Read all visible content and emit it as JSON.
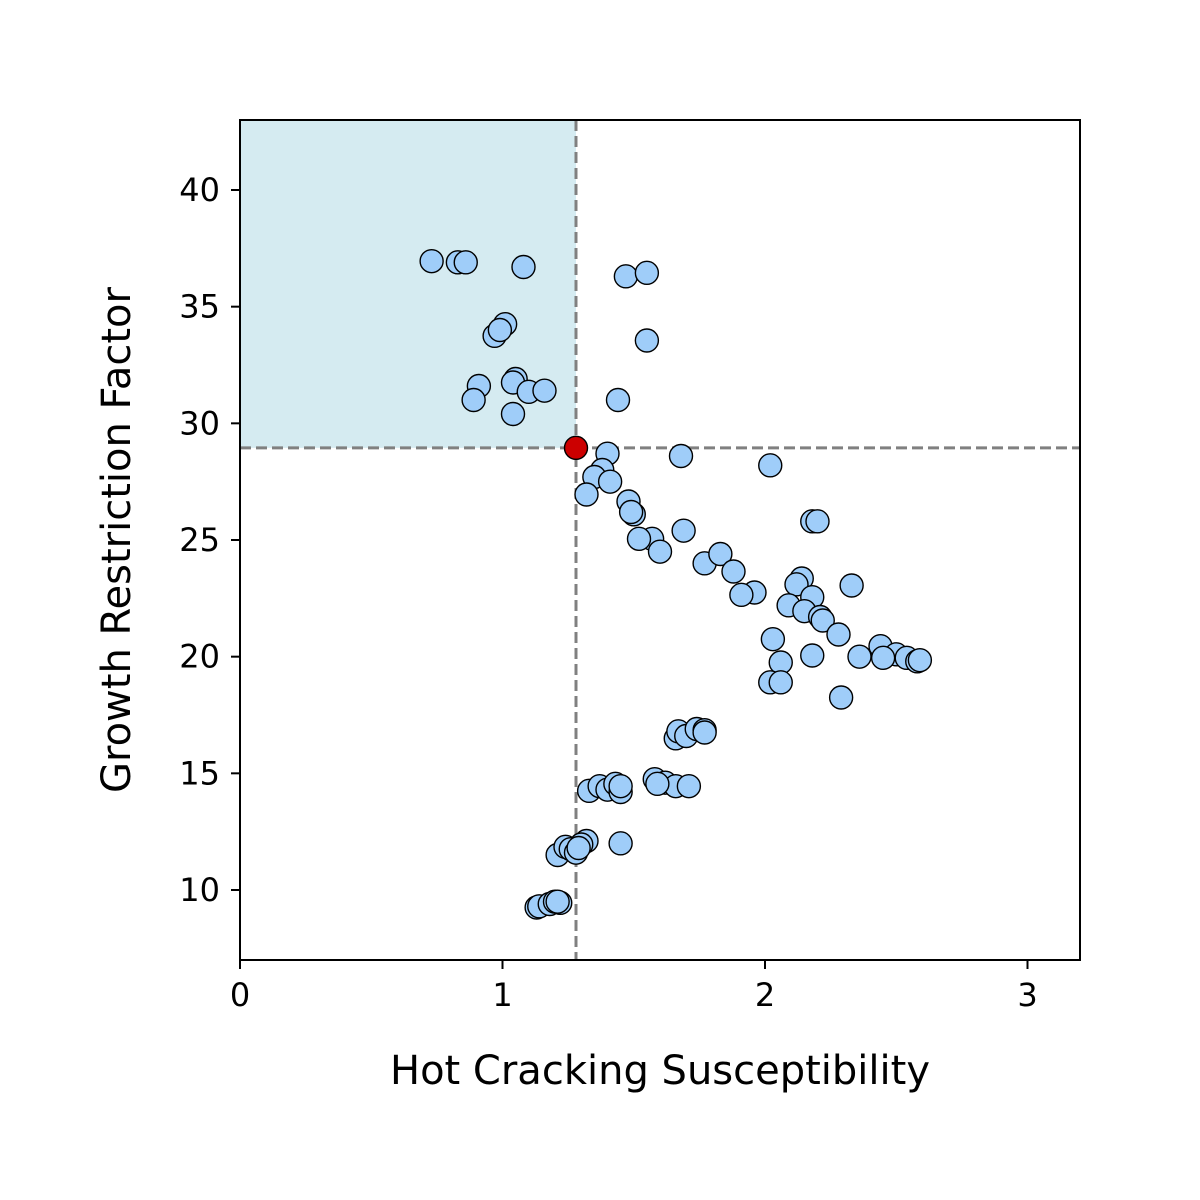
{
  "chart_data": {
    "type": "scatter",
    "title": "",
    "xlabel": "Hot Cracking Susceptibility",
    "ylabel": "Growth Restriction Factor",
    "xlim": [
      0,
      3.2
    ],
    "ylim": [
      7,
      43
    ],
    "xticks": [
      0,
      1,
      2,
      3
    ],
    "yticks": [
      10,
      15,
      20,
      25,
      30,
      35,
      40
    ],
    "grid": false,
    "legend": "none",
    "highlight_region": {
      "x": [
        0,
        1.28
      ],
      "y": [
        28.95,
        43
      ],
      "color": "#d5ebf1"
    },
    "reference_lines": {
      "x": 1.28,
      "y": 28.95,
      "color": "#808080",
      "style": "dashed"
    },
    "point_color": "#9fcdf9",
    "point_edge_color": "#000000",
    "selected_color": "#cc0000",
    "selected_point": {
      "x": 1.28,
      "y": 28.95
    },
    "series": [
      {
        "points": [
          [
            0.73,
            36.95
          ],
          [
            0.83,
            36.9
          ],
          [
            0.86,
            36.9
          ],
          [
            1.08,
            36.7
          ],
          [
            1.47,
            36.3
          ],
          [
            1.55,
            36.45
          ],
          [
            1.01,
            34.25
          ],
          [
            0.97,
            33.75
          ],
          [
            0.99,
            34.0
          ],
          [
            1.55,
            33.55
          ],
          [
            0.91,
            31.6
          ],
          [
            0.89,
            31.0
          ],
          [
            1.05,
            31.9
          ],
          [
            1.04,
            31.75
          ],
          [
            1.1,
            31.35
          ],
          [
            1.16,
            31.4
          ],
          [
            1.04,
            30.4
          ],
          [
            1.44,
            31.0
          ],
          [
            1.68,
            28.6
          ],
          [
            2.02,
            28.2
          ],
          [
            1.4,
            28.7
          ],
          [
            1.38,
            28.0
          ],
          [
            1.35,
            27.7
          ],
          [
            1.41,
            27.5
          ],
          [
            1.32,
            26.95
          ],
          [
            1.48,
            26.65
          ],
          [
            1.5,
            26.1
          ],
          [
            1.49,
            26.2
          ],
          [
            1.57,
            25.05
          ],
          [
            1.52,
            25.05
          ],
          [
            1.6,
            24.5
          ],
          [
            1.69,
            25.4
          ],
          [
            2.18,
            25.8
          ],
          [
            2.2,
            25.8
          ],
          [
            1.77,
            24.0
          ],
          [
            1.83,
            24.4
          ],
          [
            1.88,
            23.65
          ],
          [
            1.96,
            22.75
          ],
          [
            1.91,
            22.65
          ],
          [
            2.14,
            23.35
          ],
          [
            2.12,
            23.1
          ],
          [
            2.33,
            23.05
          ],
          [
            2.18,
            22.55
          ],
          [
            2.09,
            22.2
          ],
          [
            2.15,
            21.95
          ],
          [
            2.21,
            21.7
          ],
          [
            2.22,
            21.55
          ],
          [
            2.28,
            20.95
          ],
          [
            2.03,
            20.75
          ],
          [
            2.18,
            20.05
          ],
          [
            2.36,
            20.0
          ],
          [
            2.44,
            20.45
          ],
          [
            2.5,
            20.1
          ],
          [
            2.54,
            19.95
          ],
          [
            2.58,
            19.8
          ],
          [
            2.59,
            19.85
          ],
          [
            2.45,
            19.95
          ],
          [
            2.06,
            19.75
          ],
          [
            2.02,
            18.9
          ],
          [
            2.06,
            18.9
          ],
          [
            2.29,
            18.25
          ],
          [
            1.66,
            16.5
          ],
          [
            1.67,
            16.8
          ],
          [
            1.7,
            16.6
          ],
          [
            1.74,
            16.9
          ],
          [
            1.77,
            16.85
          ],
          [
            1.77,
            16.75
          ],
          [
            1.58,
            14.75
          ],
          [
            1.62,
            14.6
          ],
          [
            1.66,
            14.45
          ],
          [
            1.71,
            14.45
          ],
          [
            1.59,
            14.55
          ],
          [
            1.33,
            14.25
          ],
          [
            1.37,
            14.45
          ],
          [
            1.4,
            14.3
          ],
          [
            1.43,
            14.55
          ],
          [
            1.45,
            14.2
          ],
          [
            1.45,
            14.45
          ],
          [
            1.45,
            12.0
          ],
          [
            1.32,
            12.1
          ],
          [
            1.3,
            11.95
          ],
          [
            1.21,
            11.5
          ],
          [
            1.24,
            11.85
          ],
          [
            1.26,
            11.75
          ],
          [
            1.28,
            11.6
          ],
          [
            1.29,
            11.8
          ],
          [
            1.13,
            9.25
          ],
          [
            1.14,
            9.3
          ],
          [
            1.18,
            9.4
          ],
          [
            1.2,
            9.5
          ],
          [
            1.22,
            9.45
          ],
          [
            1.21,
            9.5
          ]
        ]
      }
    ]
  }
}
